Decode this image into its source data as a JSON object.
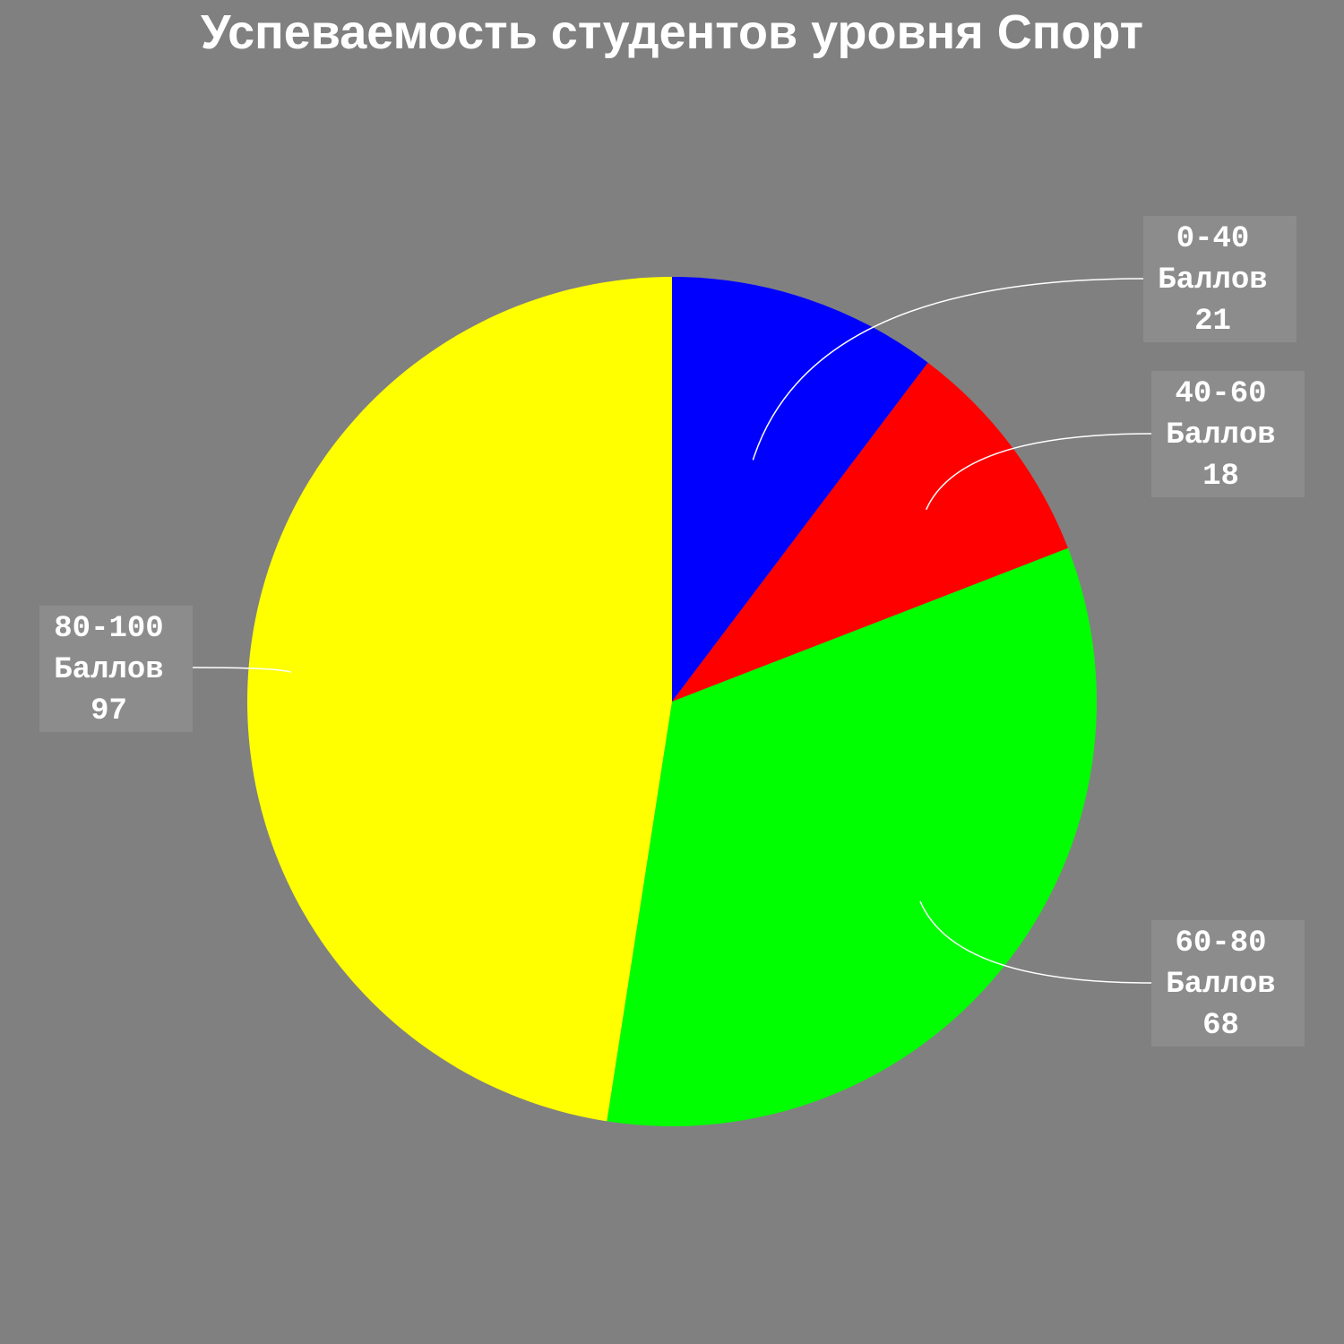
{
  "chart_data": {
    "type": "pie",
    "title": "Успеваемость студентов уровня Спорт",
    "slices": [
      {
        "category": "0-40",
        "unit": "Баллов",
        "value": 21,
        "color": "#0000ff"
      },
      {
        "category": "40-60",
        "unit": "Баллов",
        "value": 18,
        "color": "#ff0000"
      },
      {
        "category": "60-80",
        "unit": "Баллов",
        "value": 68,
        "color": "#00ff00"
      },
      {
        "category": "80-100",
        "unit": "Баллов",
        "value": 97,
        "color": "#ffff00"
      }
    ],
    "start_angle": "12 o'clock",
    "direction": "clockwise",
    "legend": "none",
    "background": "#808080"
  }
}
